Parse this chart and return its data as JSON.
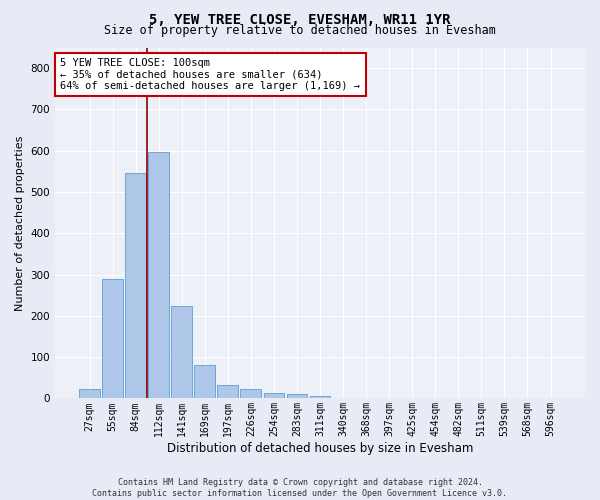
{
  "title": "5, YEW TREE CLOSE, EVESHAM, WR11 1YR",
  "subtitle": "Size of property relative to detached houses in Evesham",
  "xlabel": "Distribution of detached houses by size in Evesham",
  "ylabel": "Number of detached properties",
  "footer_line1": "Contains HM Land Registry data © Crown copyright and database right 2024.",
  "footer_line2": "Contains public sector information licensed under the Open Government Licence v3.0.",
  "bar_labels": [
    "27sqm",
    "55sqm",
    "84sqm",
    "112sqm",
    "141sqm",
    "169sqm",
    "197sqm",
    "226sqm",
    "254sqm",
    "283sqm",
    "311sqm",
    "340sqm",
    "368sqm",
    "397sqm",
    "425sqm",
    "454sqm",
    "482sqm",
    "511sqm",
    "539sqm",
    "568sqm",
    "596sqm"
  ],
  "bar_values": [
    22,
    290,
    547,
    597,
    225,
    80,
    33,
    23,
    13,
    10,
    6,
    0,
    0,
    0,
    0,
    0,
    0,
    0,
    0,
    0,
    0
  ],
  "bar_color": "#aec6e8",
  "bar_edge_color": "#5a9fd4",
  "vline_color": "#8b0000",
  "ylim": [
    0,
    850
  ],
  "yticks": [
    0,
    100,
    200,
    300,
    400,
    500,
    600,
    700,
    800
  ],
  "annotation_text": "5 YEW TREE CLOSE: 100sqm\n← 35% of detached houses are smaller (634)\n64% of semi-detached houses are larger (1,169) →",
  "annotation_box_color": "#ffffff",
  "annotation_box_edge": "#c00000",
  "bg_color": "#e8eaf6",
  "plot_bg_color": "#eef0f8",
  "grid_color": "#ffffff",
  "title_fontsize": 10,
  "subtitle_fontsize": 8.5,
  "ylabel_fontsize": 8,
  "xlabel_fontsize": 8.5,
  "tick_fontsize": 7,
  "annot_fontsize": 7.5,
  "footer_fontsize": 6
}
